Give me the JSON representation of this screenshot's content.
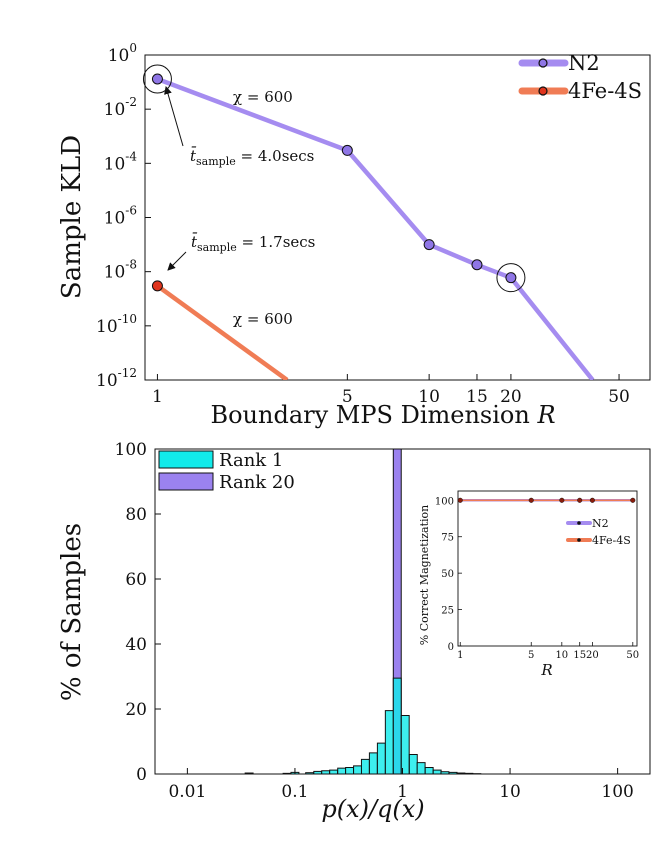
{
  "chart_data": [
    {
      "type": "line",
      "ylabel": "Sample KLD",
      "xlabel": "Boundary MPS Dimension R",
      "xscale": "log",
      "yscale": "log",
      "xlim": [
        0.9,
        65
      ],
      "ylim": [
        1e-12,
        1
      ],
      "x_ticks": [
        1,
        5,
        10,
        15,
        20,
        50
      ],
      "y_ticks": [
        {
          "value": 1,
          "label": "10^0"
        },
        {
          "value": 0.01,
          "label": "10^-2"
        },
        {
          "value": 0.0001,
          "label": "10^-4"
        },
        {
          "value": 1e-06,
          "label": "10^-6"
        },
        {
          "value": 1e-08,
          "label": "10^-8"
        },
        {
          "value": 1e-10,
          "label": "10^-10"
        },
        {
          "value": 1e-12,
          "label": "10^-12"
        }
      ],
      "legend_position": "top-right",
      "series": [
        {
          "name": "N2",
          "color": "#a58cf0",
          "marker_color": "#8f76e6",
          "x": [
            1,
            5,
            10,
            15,
            20,
            40
          ],
          "y": [
            0.13,
            0.0003,
            1e-07,
            1.8e-08,
            6e-09,
            1e-12
          ],
          "markers_at": [
            1,
            5,
            10,
            15,
            20
          ]
        },
        {
          "name": "4Fe-4S",
          "color": "#f07c55",
          "marker_color": "#e0341d",
          "x": [
            1,
            3
          ],
          "y": [
            3e-09,
            1e-12
          ],
          "markers_at": [
            1
          ]
        }
      ],
      "annotations": [
        {
          "text_main": "χ = 600",
          "series": "N2"
        },
        {
          "text_main": "t̄",
          "sub": "sample",
          "value": " = 4.0secs",
          "series": "N2"
        },
        {
          "text_main": "t̄",
          "sub": "sample",
          "value": " = 1.7secs",
          "series": "4Fe-4S"
        },
        {
          "text_main": "χ = 600",
          "series": "4Fe-4S"
        }
      ],
      "circled_points": [
        {
          "x": 1,
          "y": 0.13
        },
        {
          "x": 20,
          "y": 6e-09
        }
      ]
    },
    {
      "type": "bar",
      "ylabel": "% of Samples",
      "xlabel": "p(x)/q(x)",
      "xscale": "log",
      "xlim": [
        0.005,
        200
      ],
      "ylim": [
        0,
        100
      ],
      "x_ticks": [
        {
          "value": 0.01,
          "label": "0.01"
        },
        {
          "value": 0.1,
          "label": "0.1"
        },
        {
          "value": 1,
          "label": "1"
        },
        {
          "value": 10,
          "label": "10"
        },
        {
          "value": 100,
          "label": "100"
        }
      ],
      "y_ticks": [
        0,
        20,
        40,
        60,
        80,
        100
      ],
      "legend_position": "top-left",
      "series": [
        {
          "name": "Rank 1",
          "color": "#12eaea",
          "bin_centers": [
            0.0375,
            0.0845,
            0.1,
            0.137,
            0.163,
            0.193,
            0.229,
            0.272,
            0.322,
            0.382,
            0.452,
            0.536,
            0.636,
            0.754,
            0.894,
            1.06,
            1.26,
            1.49,
            1.77,
            2.1,
            2.48,
            2.95,
            3.49,
            4.14,
            4.91
          ],
          "values": [
            0.3,
            0.2,
            0.5,
            0.4,
            0.8,
            1.0,
            1.2,
            1.8,
            2.0,
            2.5,
            4.5,
            6.5,
            9.5,
            19.5,
            29.5,
            18.0,
            6.0,
            3.5,
            2.0,
            1.2,
            0.7,
            0.5,
            0.3,
            0.2,
            0.1
          ]
        },
        {
          "name": "Rank 20",
          "color": "#9b82ef",
          "bin_centers": [
            0.894
          ],
          "values": [
            100
          ]
        }
      ],
      "inset": {
        "type": "line",
        "ylabel": "% Correct Magnetization",
        "xlabel": "R",
        "xscale": "log",
        "xlim": [
          0.95,
          55
        ],
        "ylim": [
          0,
          100
        ],
        "x_ticks": [
          1,
          5,
          10,
          15,
          20,
          50
        ],
        "y_ticks": [
          0,
          25,
          50,
          75,
          100
        ],
        "legend_position": "right",
        "series": [
          {
            "name": "N2",
            "color": "#a58cf0",
            "x": [
              1,
              5,
              10,
              15,
              20,
              50
            ],
            "y": [
              100,
              100,
              100,
              100,
              100,
              100
            ]
          },
          {
            "name": "4Fe-4S",
            "color": "#f07c55",
            "x": [
              1,
              5,
              10,
              15,
              20,
              50
            ],
            "y": [
              100,
              100,
              100,
              100,
              100,
              100
            ]
          }
        ]
      }
    }
  ]
}
